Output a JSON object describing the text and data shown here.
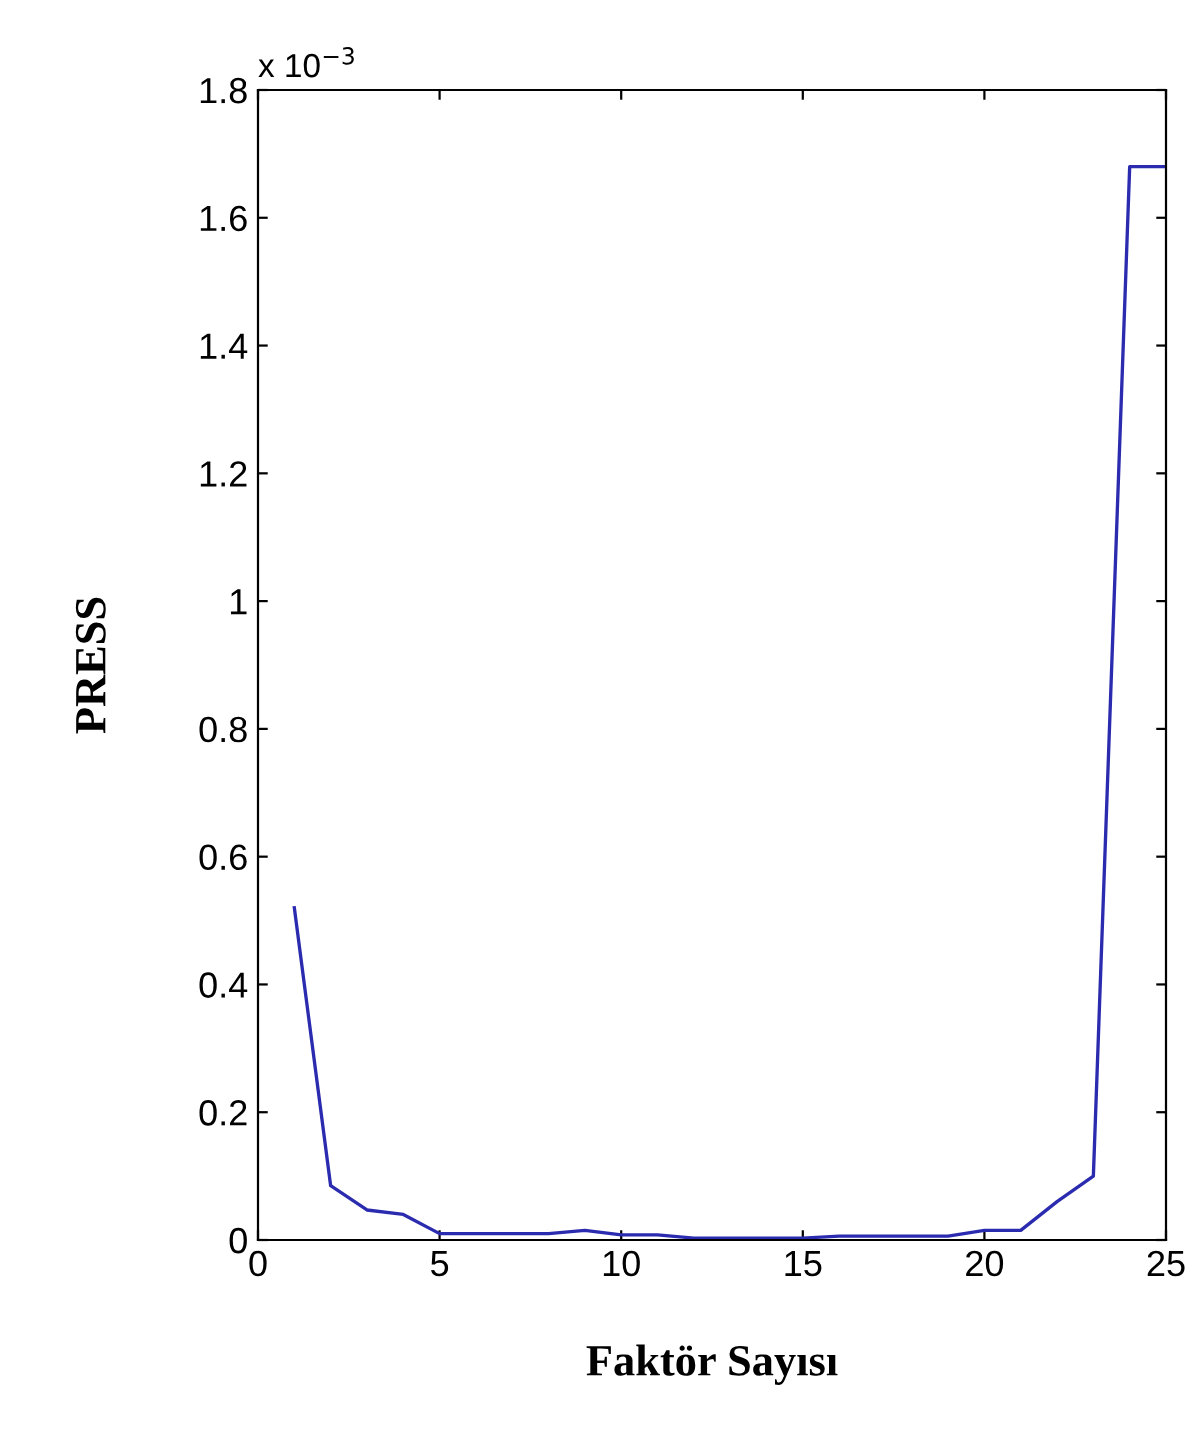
{
  "chart_data": {
    "type": "line",
    "xlabel": "Faktör Sayısı",
    "ylabel": "PRESS",
    "annotations": [
      "x 10$^{−3}$"
    ],
    "x": [
      1,
      2,
      3,
      4,
      5,
      6,
      7,
      8,
      9,
      10,
      11,
      12,
      13,
      14,
      15,
      16,
      17,
      18,
      19,
      20,
      21,
      22,
      23,
      24,
      25
    ],
    "series": [
      {
        "color": "#2b2bb0",
        "values": [
          0.52,
          0.085,
          0.047,
          0.04,
          0.01,
          0.01,
          0.01,
          0.01,
          0.015,
          0.008,
          0.008,
          0.003,
          0.003,
          0.003,
          0.003,
          0.006,
          0.006,
          0.006,
          0.006,
          0.015,
          0.015,
          0.06,
          0.1,
          1.68,
          1.68
        ]
      }
    ],
    "xlim": [
      0,
      25
    ],
    "xticks": [
      0,
      5,
      10,
      15,
      20,
      25
    ],
    "ylim": [
      0,
      1.8
    ],
    "yticks": [
      0,
      0.2,
      0.4,
      0.6,
      0.8,
      1,
      1.2,
      1.4,
      1.6,
      1.8
    ],
    "grid": false,
    "legend": false
  }
}
